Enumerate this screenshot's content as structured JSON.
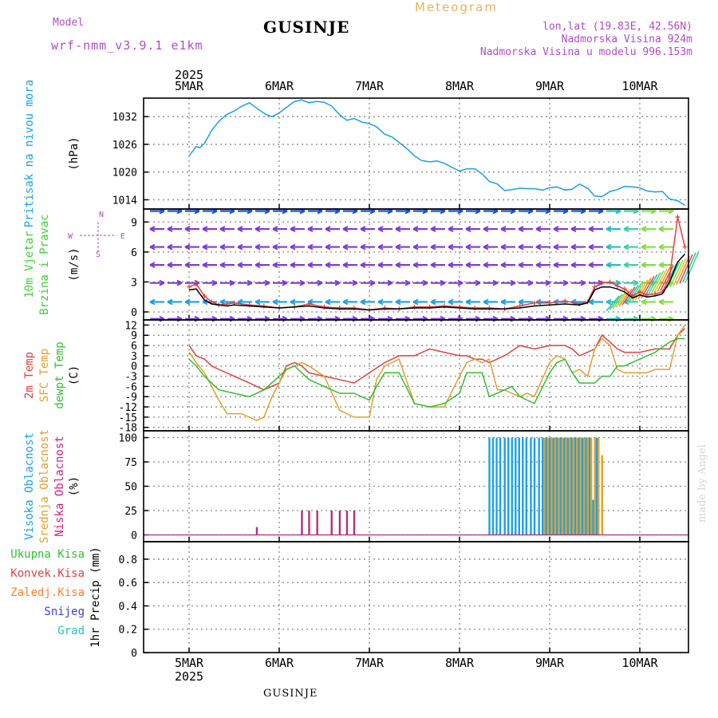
{
  "header": {
    "model_label": "Model",
    "model_name": "wrf-nmm_v3.9.1 e1km",
    "title": "GUSINJE",
    "chart_kind": "Meteogram",
    "lonlat": "lon,lat (19.83E, 42.56N)",
    "altitude": "Nadmorska Visina 924m",
    "model_altitude": "Nadmorska Visina u modelu 996.153m"
  },
  "footer": {
    "location": "GUSINJE",
    "credit": "made by Angel"
  },
  "chart_data": {
    "type": "line",
    "year": "2025",
    "date_labels": [
      "5MAR",
      "6MAR",
      "7MAR",
      "8MAR",
      "9MAR",
      "10MAR"
    ],
    "panels": [
      {
        "id": "pressure",
        "labels": [
          {
            "text": "Pritisak na nivou mora",
            "color": "#1aa0e8"
          }
        ],
        "unit": "(hPa)",
        "ylim": [
          1012,
          1036
        ],
        "yticks": [
          1014,
          1020,
          1026,
          1032
        ],
        "series": [
          {
            "color": "#1aa0e8",
            "x": [
              0,
              0.04,
              0.08,
              0.12,
              0.17,
              0.25,
              0.33,
              0.42,
              0.5,
              0.58,
              0.67,
              0.75,
              0.85,
              0.92,
              1.0,
              1.08,
              1.17,
              1.25,
              1.33,
              1.42,
              1.5,
              1.58,
              1.67,
              1.75,
              1.83,
              1.92,
              2.0,
              2.08,
              2.17,
              2.25,
              2.33,
              2.42,
              2.5,
              2.58,
              2.67,
              2.75,
              2.83,
              2.92,
              3.0,
              3.08,
              3.17,
              3.25,
              3.33,
              3.42,
              3.5,
              3.58,
              3.67,
              3.75,
              3.83,
              3.92,
              4.0,
              4.08,
              4.17,
              4.25,
              4.33,
              4.42,
              4.5,
              4.58,
              4.67,
              4.75,
              4.83,
              4.92,
              5.0,
              5.08,
              5.17,
              5.25,
              5.33,
              5.42,
              5.5
            ],
            "y": [
              1023.5,
              1024.5,
              1025.5,
              1025.3,
              1026.2,
              1029,
              1031,
              1032.5,
              1033.2,
              1034.2,
              1035,
              1033.8,
              1032.5,
              1032,
              1032.8,
              1034,
              1035.3,
              1035.6,
              1035,
              1035.3,
              1035.1,
              1034.3,
              1032.4,
              1031.2,
              1031.6,
              1030.8,
              1030.5,
              1029.8,
              1028.2,
              1027.6,
              1026.4,
              1025,
              1023.5,
              1022.5,
              1022.2,
              1022.4,
              1021.9,
              1021,
              1020.2,
              1020.7,
              1020.7,
              1019.6,
              1018,
              1017.4,
              1016,
              1016.2,
              1016.5,
              1016.4,
              1016.4,
              1016.1,
              1016.6,
              1016.8,
              1016.1,
              1016.3,
              1017.4,
              1016.5,
              1014.8,
              1014.7,
              1015.8,
              1016.2,
              1016.9,
              1016.8,
              1016.6,
              1015.9,
              1015.7,
              1015.8,
              1014.2,
              1013.8,
              1012.8
            ]
          }
        ]
      },
      {
        "id": "wind",
        "labels": [
          {
            "text": "10m Vjetar",
            "color": "#3ccf3c"
          },
          {
            "text": "Brzina i Pravac",
            "color": "#3ccf3c"
          }
        ],
        "unit": "(m/s)",
        "compass": [
          "N",
          "W",
          "E",
          "S"
        ],
        "ylim": [
          -0.8,
          10.3
        ],
        "yticks": [
          0,
          3,
          6,
          9
        ],
        "wind_rows": [
          {
            "level": 10.1,
            "color": "#1a4be8",
            "dir": "right"
          },
          {
            "level": 8.3,
            "color": "#7c3cd8",
            "dir": "left"
          },
          {
            "level": 6.5,
            "color": "#7c3cd8",
            "dir": "left"
          },
          {
            "level": 4.7,
            "color": "#7c3cd8",
            "dir": "left"
          },
          {
            "level": 2.9,
            "color": "#7c3cd8",
            "dir": "right"
          },
          {
            "level": 1.0,
            "color": "#1aa0e8",
            "dir": "left"
          },
          {
            "level": -0.7,
            "color": "#7c3cd8",
            "dir": "right"
          }
        ],
        "series": [
          {
            "color": "#e04040",
            "x": [
              0,
              0.08,
              0.17,
              0.25,
              0.33,
              0.42,
              0.5,
              0.67,
              0.83,
              1.0,
              1.17,
              1.33,
              1.5,
              1.67,
              1.83,
              2.0,
              2.17,
              2.33,
              2.5,
              2.67,
              2.83,
              3.0,
              3.17,
              3.33,
              3.5,
              3.67,
              3.83,
              4.0,
              4.17,
              4.33,
              4.42,
              4.5,
              4.58,
              4.67,
              4.75,
              4.83,
              4.92,
              5.0,
              5.08,
              5.17,
              5.25,
              5.33,
              5.42,
              5.5
            ],
            "y": [
              2.5,
              2.8,
              1.6,
              1.0,
              0.7,
              0.8,
              0.9,
              0.7,
              0.6,
              0.4,
              0.5,
              0.8,
              0.5,
              0.4,
              0.4,
              0.2,
              0.4,
              0.3,
              0.5,
              0.5,
              0.6,
              0.5,
              0.4,
              0.4,
              0.3,
              0.6,
              0.9,
              0.9,
              1.1,
              0.8,
              1.0,
              2.5,
              2.9,
              3.0,
              2.6,
              2.3,
              1.6,
              2.0,
              1.7,
              1.8,
              2.0,
              3.5,
              9.5,
              6.5
            ]
          },
          {
            "color": "#000000",
            "x": [
              0,
              0.08,
              0.17,
              0.25,
              0.33,
              0.42,
              0.5,
              0.67,
              0.83,
              1.0,
              1.17,
              1.33,
              1.5,
              1.67,
              1.83,
              2.0,
              2.17,
              2.33,
              2.5,
              2.67,
              2.83,
              3.0,
              3.17,
              3.33,
              3.5,
              3.67,
              3.83,
              4.0,
              4.17,
              4.33,
              4.42,
              4.5,
              4.58,
              4.67,
              4.75,
              4.83,
              4.92,
              5.0,
              5.08,
              5.17,
              5.25,
              5.33,
              5.42,
              5.5
            ],
            "y": [
              2.2,
              2.3,
              1.2,
              0.8,
              0.7,
              0.6,
              0.7,
              0.6,
              0.5,
              0.4,
              0.5,
              0.6,
              0.4,
              0.3,
              0.3,
              0.2,
              0.3,
              0.3,
              0.4,
              0.4,
              0.5,
              0.4,
              0.3,
              0.3,
              0.3,
              0.4,
              0.6,
              0.7,
              0.8,
              0.7,
              0.9,
              2.2,
              2.5,
              2.5,
              2.3,
              2.0,
              1.4,
              1.7,
              1.5,
              1.6,
              1.8,
              3.0,
              5.0,
              5.8
            ]
          }
        ]
      },
      {
        "id": "temperature",
        "labels": [
          {
            "text": "2m Temp",
            "color": "#e04040"
          },
          {
            "text": "SFC Temp",
            "color": "#e0a030"
          },
          {
            "text": "dewpt Temp",
            "color": "#30c030"
          }
        ],
        "unit": "(C)",
        "ylim": [
          -19,
          13.5
        ],
        "yticks": [
          -18,
          -15,
          -12,
          -9,
          -6,
          -3,
          0,
          3,
          6,
          9,
          12
        ],
        "series": [
          {
            "name": "2m Temp",
            "color": "#e04040",
            "x": [
              0,
              0.08,
              0.17,
              0.25,
              0.33,
              0.5,
              0.67,
              0.83,
              1.0,
              1.08,
              1.17,
              1.25,
              1.33,
              1.5,
              1.67,
              1.83,
              2.0,
              2.17,
              2.33,
              2.5,
              2.67,
              2.83,
              3.0,
              3.08,
              3.17,
              3.25,
              3.33,
              3.5,
              3.67,
              3.83,
              4.0,
              4.17,
              4.25,
              4.33,
              4.42,
              4.5,
              4.58,
              4.67,
              4.75,
              4.83,
              5.0,
              5.17,
              5.33,
              5.42,
              5.5
            ],
            "y": [
              6,
              3,
              2,
              0,
              -1,
              -3,
              -5,
              -7,
              -5,
              0,
              1,
              0,
              -2,
              -3,
              -4,
              -5,
              -2,
              1,
              3,
              3,
              5,
              4,
              3,
              3,
              2,
              2,
              1,
              3,
              6,
              5,
              6,
              6,
              5,
              3,
              4,
              5,
              9,
              7,
              5,
              4,
              4,
              5,
              5,
              9,
              11
            ]
          },
          {
            "name": "SFC Temp",
            "color": "#e0a030",
            "x": [
              0,
              0.08,
              0.17,
              0.25,
              0.33,
              0.42,
              0.5,
              0.58,
              0.67,
              0.75,
              0.83,
              0.92,
              1.0,
              1.08,
              1.17,
              1.25,
              1.33,
              1.5,
              1.67,
              1.83,
              2.0,
              2.08,
              2.17,
              2.25,
              2.33,
              2.5,
              2.67,
              2.83,
              3.0,
              3.08,
              3.17,
              3.25,
              3.33,
              3.42,
              3.5,
              3.58,
              3.67,
              3.75,
              3.83,
              4.0,
              4.08,
              4.17,
              4.25,
              4.33,
              4.42,
              4.5,
              4.58,
              4.67,
              4.75,
              4.83,
              5.0,
              5.08,
              5.17,
              5.25,
              5.33,
              5.42,
              5.5
            ],
            "y": [
              4,
              1,
              -2,
              -6,
              -10,
              -14,
              -14,
              -14,
              -15,
              -16,
              -15,
              -9,
              -5,
              -1,
              0,
              1,
              0,
              -3,
              -13,
              -15,
              -15,
              -4,
              0,
              1,
              2,
              -11,
              -12,
              -12,
              -3,
              1,
              2,
              1,
              2,
              -7,
              -7,
              -8,
              -9,
              -8,
              -9,
              1,
              3,
              2,
              -2,
              -1,
              -3,
              5,
              8,
              6,
              -1,
              -2,
              -2,
              -2,
              -1,
              -1,
              -1,
              9,
              12
            ]
          },
          {
            "name": "dewpt Temp",
            "color": "#30c030",
            "x": [
              0,
              0.08,
              0.17,
              0.25,
              0.33,
              0.5,
              0.67,
              0.83,
              1.0,
              1.08,
              1.17,
              1.25,
              1.33,
              1.5,
              1.67,
              1.83,
              2.0,
              2.08,
              2.17,
              2.25,
              2.33,
              2.5,
              2.67,
              2.83,
              3.0,
              3.08,
              3.17,
              3.25,
              3.33,
              3.5,
              3.58,
              3.67,
              3.75,
              3.83,
              4.0,
              4.08,
              4.17,
              4.25,
              4.33,
              4.5,
              4.58,
              4.67,
              4.75,
              4.83,
              5.0,
              5.17,
              5.33,
              5.42,
              5.5
            ],
            "y": [
              2,
              0,
              -3,
              -5,
              -7,
              -8,
              -9,
              -7,
              -3,
              -1,
              0,
              -2,
              -4,
              -6,
              -8,
              -8,
              -10,
              -6,
              -2,
              -2,
              -2,
              -11,
              -12,
              -11,
              -8,
              -2,
              -2,
              -2,
              -9,
              -7,
              -6,
              -9,
              -10,
              -11,
              -2,
              1,
              2,
              -2,
              -5,
              -5,
              -3,
              -3,
              0,
              0,
              2,
              4,
              7,
              8,
              8
            ]
          }
        ]
      },
      {
        "id": "clouds",
        "labels": [
          {
            "text": "Visoka Oblacnost",
            "color": "#1aa0e8"
          },
          {
            "text": "Srednja Oblacnost",
            "color": "#e0a030"
          },
          {
            "text": "Niska Oblacnost",
            "color": "#d0207a"
          }
        ],
        "unit": "(%)",
        "ylim": [
          -7,
          107
        ],
        "yticks": [
          0,
          25,
          50,
          75,
          100
        ],
        "bars_high": {
          "color": "#1aa0e8",
          "x": [
            3.33,
            3.37,
            3.41,
            3.45,
            3.5,
            3.54,
            3.58,
            3.62,
            3.66,
            3.7,
            3.74,
            3.79,
            3.83,
            3.88,
            3.92,
            3.96,
            4.0,
            4.04,
            4.08,
            4.12,
            4.16,
            4.2,
            4.24,
            4.28,
            4.32,
            4.36,
            4.4,
            4.44,
            4.48,
            4.52
          ],
          "y": [
            100,
            100,
            100,
            100,
            100,
            100,
            100,
            100,
            100,
            100,
            100,
            100,
            100,
            100,
            100,
            100,
            100,
            100,
            100,
            100,
            100,
            100,
            100,
            100,
            100,
            100,
            100,
            100,
            36,
            100
          ]
        },
        "bars_mid": {
          "color": "#e0a030",
          "x": [
            3.94,
            3.98,
            4.02,
            4.06,
            4.1,
            4.14,
            4.18,
            4.22,
            4.26,
            4.3,
            4.34,
            4.38,
            4.42,
            4.46,
            4.5,
            4.54,
            4.58
          ],
          "y": [
            100,
            100,
            100,
            100,
            100,
            100,
            100,
            100,
            100,
            100,
            100,
            100,
            100,
            100,
            100,
            100,
            82
          ]
        },
        "bars_low": {
          "color": "#b0307a",
          "x": [
            0.75,
            1.25,
            1.33,
            1.42,
            1.58,
            1.67,
            1.75,
            1.83
          ],
          "y": [
            8,
            25,
            25,
            25,
            25,
            25,
            25,
            25
          ]
        }
      },
      {
        "id": "precip",
        "labels": [
          {
            "text": "Ukupna Kisa",
            "color": "#30c030"
          },
          {
            "text": "Konvek.Kisa",
            "color": "#e04040"
          },
          {
            "text": "Zaledj.Kisa",
            "color": "#ff7f27"
          },
          {
            "text": "Snijeg",
            "color": "#3c3cd8"
          },
          {
            "text": "Grad",
            "color": "#20c0c0"
          }
        ],
        "axis_label": "1hr Precip (mm)",
        "ylim": [
          0,
          0.95
        ],
        "yticks": [
          0,
          0.2,
          0.4,
          0.6,
          0.8
        ],
        "series": []
      }
    ]
  }
}
